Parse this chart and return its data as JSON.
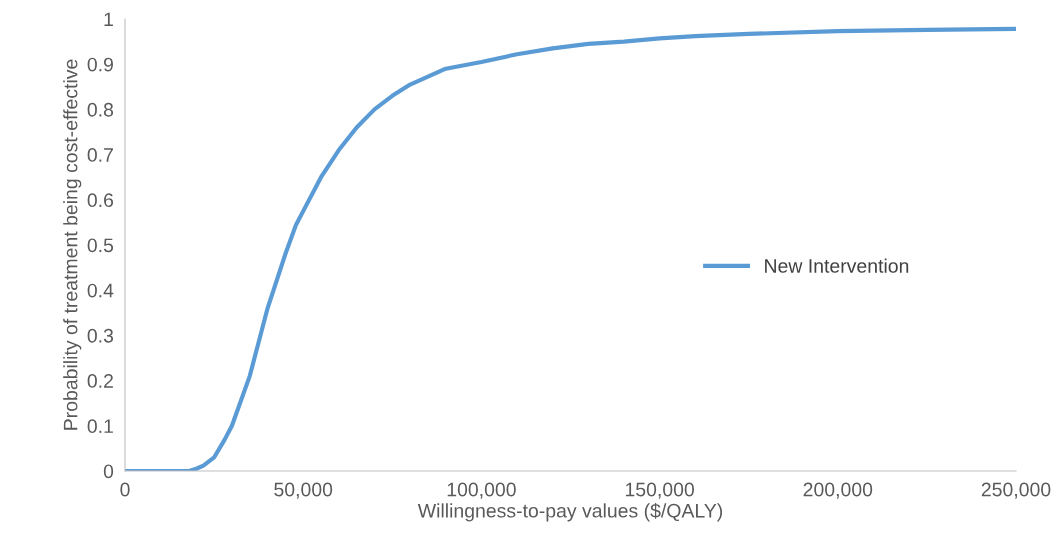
{
  "chart_data": {
    "type": "line",
    "xlabel": "Willingness-to-pay values ($/QALY)",
    "ylabel": "Probability of treatment being cost-effective",
    "x": [
      0,
      5000,
      10000,
      15000,
      18000,
      20000,
      22000,
      25000,
      28000,
      30000,
      35000,
      40000,
      45000,
      48000,
      50000,
      55000,
      60000,
      65000,
      70000,
      75000,
      80000,
      90000,
      100000,
      110000,
      120000,
      130000,
      140000,
      150000,
      160000,
      175000,
      200000,
      225000,
      250000
    ],
    "series": [
      {
        "name": "New Intervention",
        "color": "#5b9bd5",
        "values": [
          0,
          0,
          0,
          0,
          0,
          0.005,
          0.012,
          0.03,
          0.07,
          0.1,
          0.21,
          0.36,
          0.48,
          0.545,
          0.575,
          0.65,
          0.71,
          0.76,
          0.8,
          0.83,
          0.855,
          0.89,
          0.905,
          0.922,
          0.935,
          0.945,
          0.95,
          0.957,
          0.962,
          0.967,
          0.973,
          0.976,
          0.978
        ]
      }
    ],
    "xlim": [
      0,
      250000
    ],
    "xticks": [
      0,
      {
        "value": 50000,
        "label": "50,000"
      },
      {
        "value": 100000,
        "label": "100,000"
      },
      {
        "value": 150000,
        "label": "150,000"
      },
      {
        "value": 200000,
        "label": "200,000"
      },
      {
        "value": 250000,
        "label": "250,000"
      }
    ],
    "ylim": [
      0,
      1
    ],
    "yticks": [
      0,
      0.1,
      0.2,
      0.3,
      0.4,
      0.5,
      0.6,
      0.7,
      0.8,
      0.9,
      1
    ],
    "grid": false,
    "legend": "right",
    "marker": "none",
    "line_style": "solid"
  }
}
